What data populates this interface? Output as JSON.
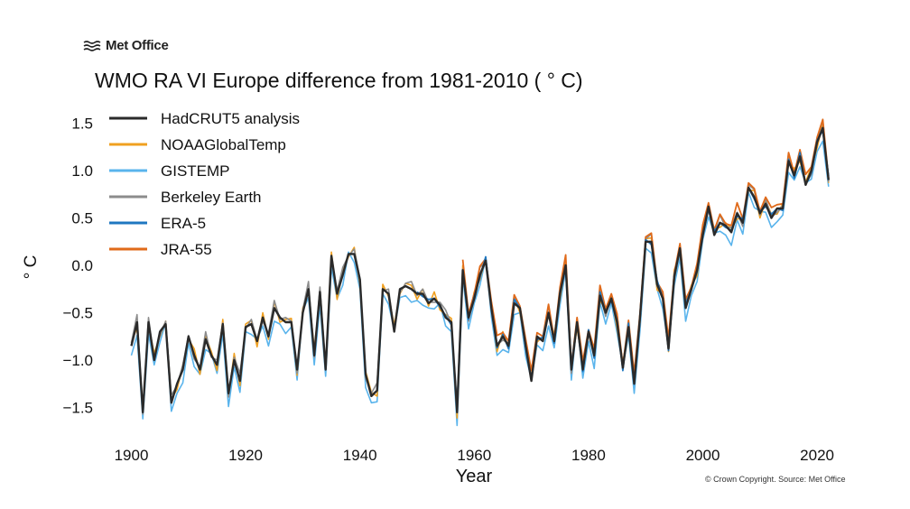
{
  "logo": {
    "text": "Met Office",
    "icon": "wave-lines-icon"
  },
  "copyright": "© Crown Copyright. Source: Met Office",
  "chart_data": {
    "type": "line",
    "title": "WMO RA VI Europe difference from 1981-2010 ( ° C)",
    "xlabel": "Year",
    "ylabel": "° C",
    "xlim": [
      1897,
      2023
    ],
    "ylim": [
      -1.75,
      1.7
    ],
    "xticks": [
      1900,
      1920,
      1940,
      1960,
      1980,
      2000,
      2020
    ],
    "yticks": [
      -1.5,
      -1.0,
      -0.5,
      0.0,
      0.5,
      1.0,
      1.5
    ],
    "ytick_labels": [
      "−1.5",
      "−1.0",
      "−0.5",
      "0.0",
      "0.5",
      "1.0",
      "1.5"
    ],
    "grid": false,
    "legend": "top-left",
    "x_start": 1900,
    "base_values": [
      -0.85,
      -0.6,
      -1.55,
      -0.6,
      -1.0,
      -0.7,
      -0.62,
      -1.45,
      -1.25,
      -1.1,
      -0.75,
      -0.95,
      -1.1,
      -0.78,
      -0.95,
      -1.05,
      -0.62,
      -1.35,
      -1.0,
      -1.22,
      -0.65,
      -0.62,
      -0.8,
      -0.55,
      -0.75,
      -0.45,
      -0.55,
      -0.6,
      -0.6,
      -1.1,
      -0.5,
      -0.25,
      -0.95,
      -0.28,
      -1.1,
      0.1,
      -0.3,
      -0.1,
      0.12,
      0.12,
      -0.15,
      -1.15,
      -1.38,
      -1.32,
      -0.25,
      -0.3,
      -0.7,
      -0.25,
      -0.22,
      -0.25,
      -0.3,
      -0.3,
      -0.4,
      -0.35,
      -0.42,
      -0.55,
      -0.6,
      -1.55,
      -0.05,
      -0.55,
      -0.35,
      -0.1,
      0.05,
      -0.45,
      -0.85,
      -0.75,
      -0.85,
      -0.4,
      -0.45,
      -0.85,
      -1.22,
      -0.75,
      -0.8,
      -0.5,
      -0.8,
      -0.3,
      0.0,
      -1.1,
      -0.6,
      -1.1,
      -0.7,
      -0.95,
      -0.32,
      -0.5,
      -0.35,
      -0.6,
      -1.08,
      -0.65,
      -1.25,
      -0.55,
      0.25,
      0.25,
      -0.2,
      -0.35,
      -0.88,
      -0.12,
      0.18,
      -0.45,
      -0.25,
      -0.05,
      0.32,
      0.62,
      0.32,
      0.45,
      0.42,
      0.35,
      0.55,
      0.45,
      0.82,
      0.72,
      0.55,
      0.65,
      0.5,
      0.6,
      0.6,
      1.1,
      0.95,
      1.15,
      0.85,
      1.0,
      1.3,
      1.45,
      0.9
    ],
    "series": [
      {
        "name": "HadCRUT5 analysis",
        "color": "#2a2a2a",
        "width": 2.4,
        "offsets": [
          0
        ]
      },
      {
        "name": "NOAAGlobalTemp",
        "color": "#f0a020",
        "width": 1.6,
        "offsets": [
          0.04,
          -0.06,
          0.05,
          -0.03,
          0.07,
          -0.05,
          0.03
        ]
      },
      {
        "name": "GISTEMP",
        "color": "#5ab4ec",
        "width": 1.6,
        "offsets": [
          -0.1,
          -0.14,
          -0.07,
          -0.12,
          -0.05,
          -0.11,
          0.02,
          -0.09
        ]
      },
      {
        "name": "Berkeley Earth",
        "color": "#8c8c8c",
        "width": 1.6,
        "offsets": [
          0.03,
          0.08,
          -0.02,
          0.05,
          0.01,
          -0.04
        ]
      },
      {
        "name": "ERA-5",
        "color": "#1f77c0",
        "width": 1.8,
        "offsets": [
          0.02,
          -0.03,
          0.04,
          0.0,
          -0.02
        ],
        "start": 1950
      },
      {
        "name": "JRA-55",
        "color": "#e06a1a",
        "width": 1.8,
        "offsets": [
          0.05,
          0.09,
          0.02,
          0.07,
          0.11,
          0.04
        ],
        "start": 1958
      }
    ]
  }
}
